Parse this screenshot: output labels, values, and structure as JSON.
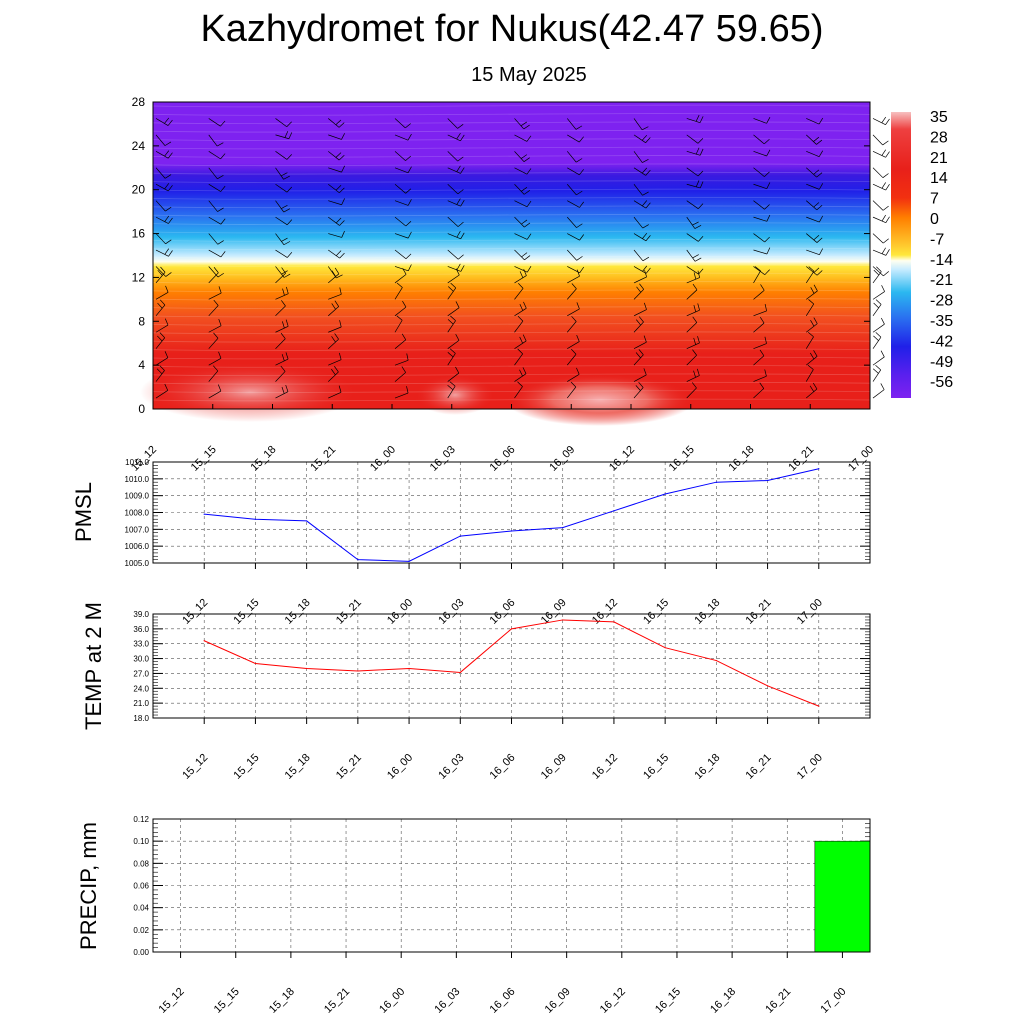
{
  "title": "Kazhydromet for Nukus(42.47 59.65)",
  "subtitle": "15 May 2025",
  "time_labels": [
    "15_12",
    "15_15",
    "15_18",
    "15_21",
    "16_00",
    "16_03",
    "16_06",
    "16_09",
    "16_12",
    "16_15",
    "16_18",
    "16_21",
    "17_00"
  ],
  "chart_data": [
    {
      "type": "heatmap",
      "y_ticks": [
        "0",
        "4",
        "8",
        "12",
        "16",
        "20",
        "24",
        "28"
      ],
      "ylim": [
        0,
        28
      ],
      "colorbar_labels": [
        "35",
        "28",
        "21",
        "14",
        "7",
        "0",
        "-7",
        "-14",
        "-21",
        "-28",
        "-35",
        "-42",
        "-49",
        "-56"
      ],
      "colors": {
        "hot": "#e8201a",
        "warm": "#ff7f00",
        "yellow": "#ffe83c",
        "cold": "#2bb8f0",
        "blue": "#2020e8",
        "purple": "#7e22f0"
      }
    },
    {
      "type": "line",
      "ylabel": "PMSL",
      "y_ticks": [
        "1005.0",
        "1006.0",
        "1007.0",
        "1008.0",
        "1009.0",
        "1010.0",
        "1011.0"
      ],
      "ylim": [
        1005.0,
        1011.0
      ],
      "values": [
        1007.9,
        1007.6,
        1007.5,
        1005.2,
        1005.1,
        1006.6,
        1006.9,
        1007.1,
        1008.1,
        1009.1,
        1009.8,
        1009.9,
        1010.6
      ],
      "color": "#0000ff"
    },
    {
      "type": "line",
      "ylabel": "TEMP at 2 M",
      "y_ticks": [
        "18.0",
        "21.0",
        "24.0",
        "27.0",
        "30.0",
        "33.0",
        "36.0",
        "39.0"
      ],
      "ylim": [
        18.0,
        39.0
      ],
      "values": [
        33.6,
        29.0,
        28.0,
        27.5,
        28.0,
        27.2,
        36.0,
        37.8,
        37.4,
        32.2,
        29.6,
        24.5,
        20.4
      ],
      "color": "#ff0000"
    },
    {
      "type": "bar",
      "ylabel": "PRECIP, mm",
      "y_ticks": [
        "0.00",
        "0.02",
        "0.04",
        "0.06",
        "0.08",
        "0.10",
        "0.12"
      ],
      "ylim": [
        0.0,
        0.12
      ],
      "values": [
        0,
        0,
        0,
        0,
        0,
        0,
        0,
        0,
        0,
        0,
        0,
        0,
        0.1
      ],
      "color": "#00ff00"
    }
  ]
}
